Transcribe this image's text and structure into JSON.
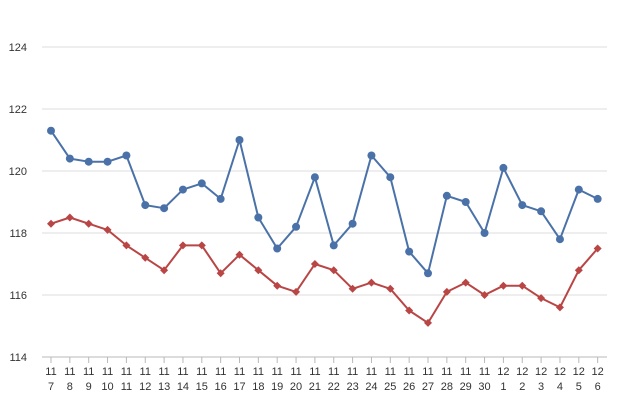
{
  "chart_data": {
    "type": "line",
    "title": "",
    "xlabel": "",
    "ylabel": "",
    "ylim": [
      114,
      124
    ],
    "yticks": [
      114,
      116,
      118,
      120,
      122,
      124
    ],
    "grid": true,
    "legend": "none",
    "categories": [
      [
        "11",
        "7"
      ],
      [
        "11",
        "8"
      ],
      [
        "11",
        "9"
      ],
      [
        "11",
        "10"
      ],
      [
        "11",
        "11"
      ],
      [
        "11",
        "12"
      ],
      [
        "11",
        "13"
      ],
      [
        "11",
        "14"
      ],
      [
        "11",
        "15"
      ],
      [
        "11",
        "16"
      ],
      [
        "11",
        "17"
      ],
      [
        "11",
        "18"
      ],
      [
        "11",
        "19"
      ],
      [
        "11",
        "20"
      ],
      [
        "11",
        "21"
      ],
      [
        "11",
        "22"
      ],
      [
        "11",
        "23"
      ],
      [
        "11",
        "24"
      ],
      [
        "11",
        "25"
      ],
      [
        "11",
        "26"
      ],
      [
        "11",
        "27"
      ],
      [
        "11",
        "28"
      ],
      [
        "11",
        "29"
      ],
      [
        "11",
        "30"
      ],
      [
        "12",
        "1"
      ],
      [
        "12",
        "2"
      ],
      [
        "12",
        "3"
      ],
      [
        "12",
        "4"
      ],
      [
        "12",
        "5"
      ],
      [
        "12",
        "6"
      ]
    ],
    "series": [
      {
        "color": "#4a72a8",
        "marker": "circle",
        "values": [
          121.3,
          120.4,
          120.3,
          120.3,
          120.5,
          118.9,
          118.8,
          119.4,
          119.6,
          119.1,
          121.0,
          118.5,
          117.5,
          118.2,
          119.8,
          117.6,
          118.3,
          120.5,
          119.8,
          117.4,
          116.7,
          119.2,
          119.0,
          118.0,
          120.1,
          118.9,
          118.7,
          117.8,
          119.4,
          119.1
        ]
      },
      {
        "color": "#b94545",
        "marker": "diamond",
        "values": [
          118.3,
          118.5,
          118.3,
          118.1,
          117.6,
          117.2,
          116.8,
          117.6,
          117.6,
          116.7,
          117.3,
          116.8,
          116.3,
          116.1,
          117.0,
          116.8,
          116.2,
          116.4,
          116.2,
          115.5,
          115.1,
          116.1,
          116.4,
          116.0,
          116.3,
          116.3,
          115.9,
          115.6,
          116.8,
          117.5
        ]
      }
    ]
  }
}
